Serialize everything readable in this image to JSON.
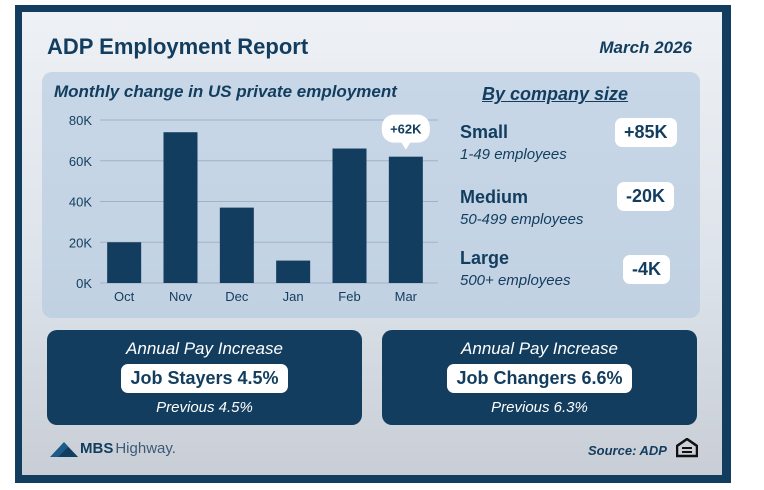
{
  "header": {
    "title": "ADP Employment Report",
    "date": "March 2026"
  },
  "chart_data": {
    "type": "bar",
    "title": "Monthly change in US private employment",
    "categories": [
      "Oct",
      "Nov",
      "Dec",
      "Jan",
      "Feb",
      "Mar"
    ],
    "values": [
      20000,
      74000,
      37000,
      11000,
      66000,
      62000
    ],
    "ylim": [
      0,
      80000
    ],
    "yticks": [
      0,
      20000,
      40000,
      60000,
      80000
    ],
    "ytick_labels": [
      "0K",
      "20K",
      "40K",
      "60K",
      "80K"
    ],
    "grid": true,
    "annotation": {
      "category": "Mar",
      "label": "+62K"
    },
    "bar_color": "#123d5e"
  },
  "company_size": {
    "title": "By company size",
    "items": [
      {
        "name": "Small",
        "range": "1-49 employees",
        "change": "+85K"
      },
      {
        "name": "Medium",
        "range": "50-499 employees",
        "change": "-20K"
      },
      {
        "name": "Large",
        "range": "500+ employees",
        "change": "-4K"
      }
    ]
  },
  "pay": [
    {
      "heading": "Annual Pay Increase",
      "value": "Job Stayers 4.5%",
      "previous": "Previous 4.5%"
    },
    {
      "heading": "Annual Pay Increase",
      "value": "Job Changers 6.6%",
      "previous": "Previous 6.3%"
    }
  ],
  "footer": {
    "logo_bold": "MBS",
    "logo_light": "Highway.",
    "source": "Source: ADP"
  },
  "colors": {
    "brand": "#123d5e"
  }
}
